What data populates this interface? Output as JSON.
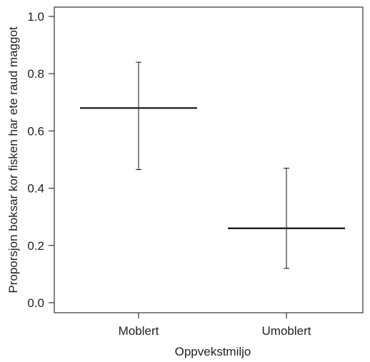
{
  "chart_data": {
    "type": "errorbar",
    "xlabel": "Oppvekstmiljo",
    "ylabel": "Proporsjon boksar kor fisken har ete raud maggot",
    "ylim": [
      0.0,
      1.0
    ],
    "yticks": [
      0.0,
      0.2,
      0.4,
      0.6,
      0.8,
      1.0
    ],
    "ytick_labels": [
      "0.0",
      "0.2",
      "0.4",
      "0.6",
      "0.8",
      "1.0"
    ],
    "categories": [
      "Moblert",
      "Umoblert"
    ],
    "points": [
      {
        "category": "Moblert",
        "mean": 0.68,
        "lower": 0.465,
        "upper": 0.84
      },
      {
        "category": "Umoblert",
        "mean": 0.26,
        "lower": 0.12,
        "upper": 0.47
      }
    ],
    "grid": false,
    "colors": {
      "mark": "#111111",
      "axis": "#333333"
    }
  }
}
